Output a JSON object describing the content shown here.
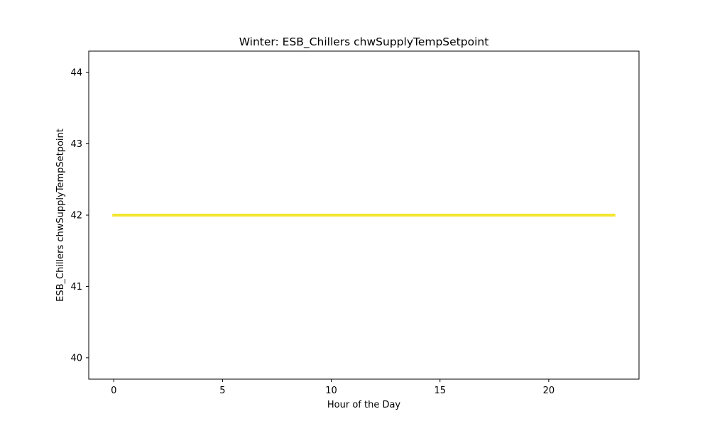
{
  "chart_data": {
    "type": "line",
    "title": "Winter: ESB_Chillers chwSupplyTempSetpoint",
    "xlabel": "Hour of the Day",
    "ylabel": "ESB_Chillers chwSupplyTempSetpoint",
    "xlim": [
      -1.15,
      24.15
    ],
    "ylim": [
      39.7,
      44.3
    ],
    "xticks": [
      0,
      5,
      10,
      15,
      20
    ],
    "yticks": [
      40,
      41,
      42,
      43,
      44
    ],
    "grid": false,
    "legend": "none",
    "series": [
      {
        "color": "#f5e52f",
        "x": [
          0,
          1,
          2,
          3,
          4,
          5,
          6,
          7,
          8,
          9,
          10,
          11,
          12,
          13,
          14,
          15,
          16,
          17,
          18,
          19,
          20,
          21,
          22,
          23
        ],
        "y": [
          42,
          42,
          42,
          42,
          42,
          42,
          42,
          42,
          42,
          42,
          42,
          42,
          42,
          42,
          42,
          42,
          42,
          42,
          42,
          42,
          42,
          42,
          42,
          42
        ]
      }
    ]
  }
}
